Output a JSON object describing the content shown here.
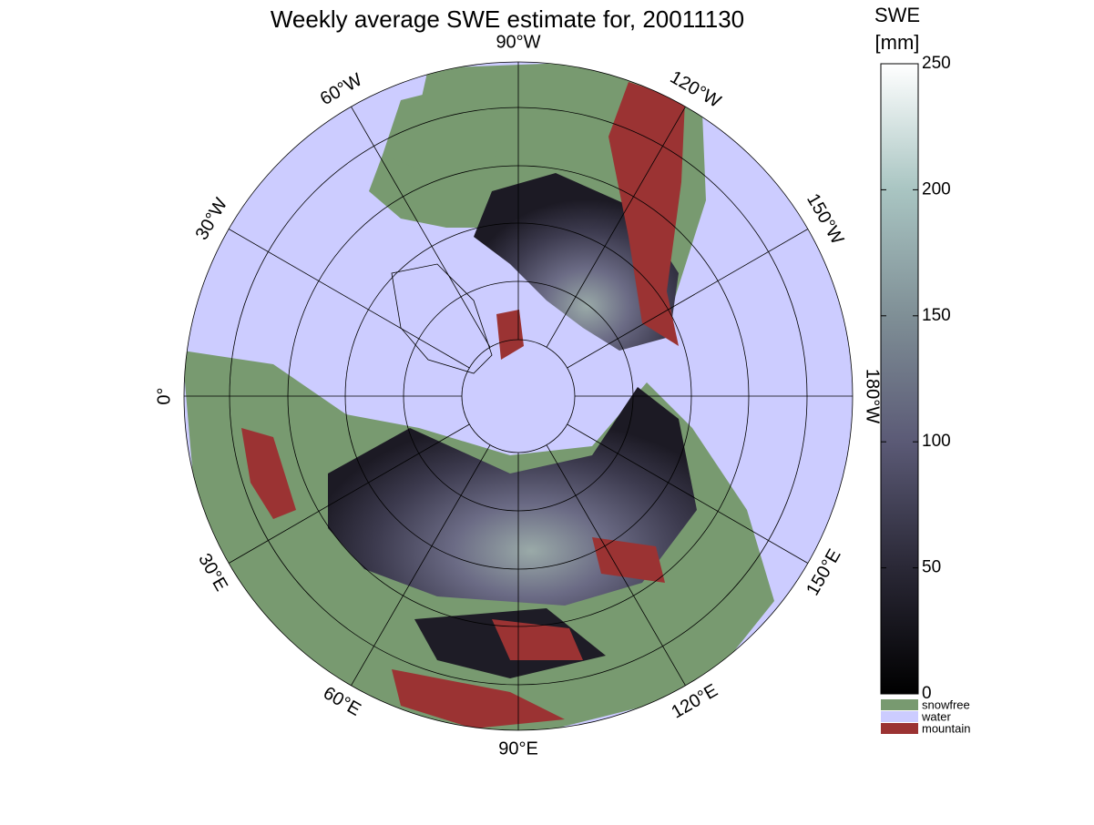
{
  "title": "Weekly average SWE estimate for, 20011130",
  "longitude_labels": [
    "0°",
    "30°W",
    "60°W",
    "90°W",
    "120°W",
    "150°W",
    "180°W",
    "150°E",
    "120°E",
    "90°E",
    "60°E",
    "30°E"
  ],
  "colorbar": {
    "label": [
      "SWE",
      "[mm]"
    ],
    "lim": [
      0,
      250
    ],
    "ticks": [
      0,
      50,
      100,
      150,
      200,
      250
    ]
  },
  "legend": [
    {
      "label": "snowfree",
      "color": "#789a70"
    },
    {
      "label": "water",
      "color": "#ccccff"
    },
    {
      "label": "mountain",
      "color": "#9b3333"
    }
  ]
}
